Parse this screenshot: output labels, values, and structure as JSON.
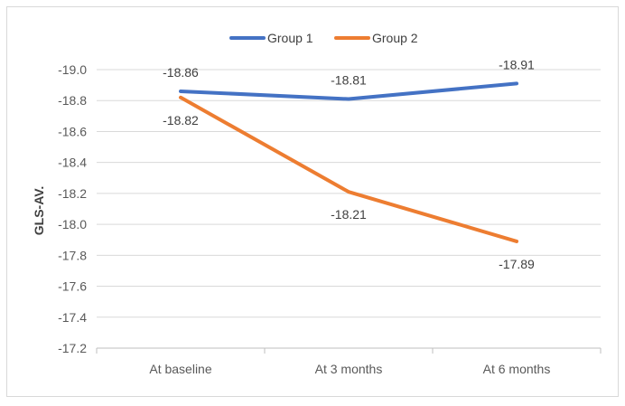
{
  "chart_data": {
    "type": "line",
    "title": "",
    "xlabel": "",
    "ylabel": "GLS-AV.",
    "categories": [
      "At baseline",
      "At 3 months",
      "At 6 months"
    ],
    "y_axis": {
      "reversed": true,
      "min": -19.0,
      "max": -17.2,
      "step": 0.2,
      "tick_labels": [
        "-19.0",
        "-18.8",
        "-18.6",
        "-18.4",
        "-18.2",
        "-18.0",
        "-17.8",
        "-17.6",
        "-17.4",
        "-17.2"
      ]
    },
    "grid": true,
    "legend_position": "top",
    "series": [
      {
        "name": "Group 1",
        "color": "#4472C4",
        "values": [
          -18.86,
          -18.81,
          -18.91
        ],
        "labels": [
          "-18.86",
          "-18.81",
          "-18.91"
        ],
        "label_position": "above"
      },
      {
        "name": "Group 2",
        "color": "#ED7D31",
        "values": [
          -18.82,
          -18.21,
          -17.89
        ],
        "labels": [
          "-18.82",
          "-18.21",
          "-17.89"
        ],
        "label_position": "below"
      }
    ]
  }
}
